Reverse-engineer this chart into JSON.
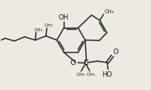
{
  "bg_color": "#ede9e3",
  "line_color": "#2a2a2a",
  "line_width": 1.1,
  "text_color": "#1a1a1a",
  "font_size": 5.8,
  "xlim": [
    0,
    10
  ],
  "ylim": [
    0,
    6
  ],
  "figsize": [
    1.93,
    1.16
  ],
  "dpi": 100
}
